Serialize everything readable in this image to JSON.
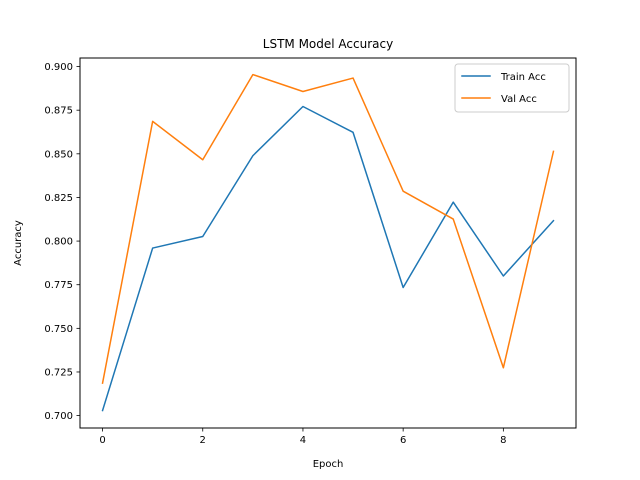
{
  "chart_data": {
    "type": "line",
    "title": "LSTM Model Accuracy",
    "xlabel": "Epoch",
    "ylabel": "Accuracy",
    "x": [
      0,
      1,
      2,
      3,
      4,
      5,
      6,
      7,
      8,
      9
    ],
    "xlim": [
      -0.45,
      9.45
    ],
    "ylim": [
      0.6929,
      0.9049
    ],
    "xticks": [
      0,
      2,
      4,
      6,
      8
    ],
    "xtick_labels": [
      "0",
      "2",
      "4",
      "6",
      "8"
    ],
    "yticks": [
      0.7,
      0.725,
      0.75,
      0.775,
      0.8,
      0.825,
      0.85,
      0.875,
      0.9
    ],
    "ytick_labels": [
      "0.700",
      "0.725",
      "0.750",
      "0.775",
      "0.800",
      "0.825",
      "0.850",
      "0.875",
      "0.900"
    ],
    "grid": false,
    "legend_position": "top-right",
    "series": [
      {
        "name": "Train Acc",
        "color": "#1f77b4",
        "values": [
          0.7029,
          0.796,
          0.8026,
          0.8489,
          0.8771,
          0.8623,
          0.7734,
          0.8223,
          0.78,
          0.8117
        ]
      },
      {
        "name": "Val Acc",
        "color": "#ff7f0e",
        "values": [
          0.7186,
          0.8686,
          0.8466,
          0.8954,
          0.8857,
          0.8934,
          0.8286,
          0.8126,
          0.7274,
          0.8514
        ]
      }
    ]
  }
}
